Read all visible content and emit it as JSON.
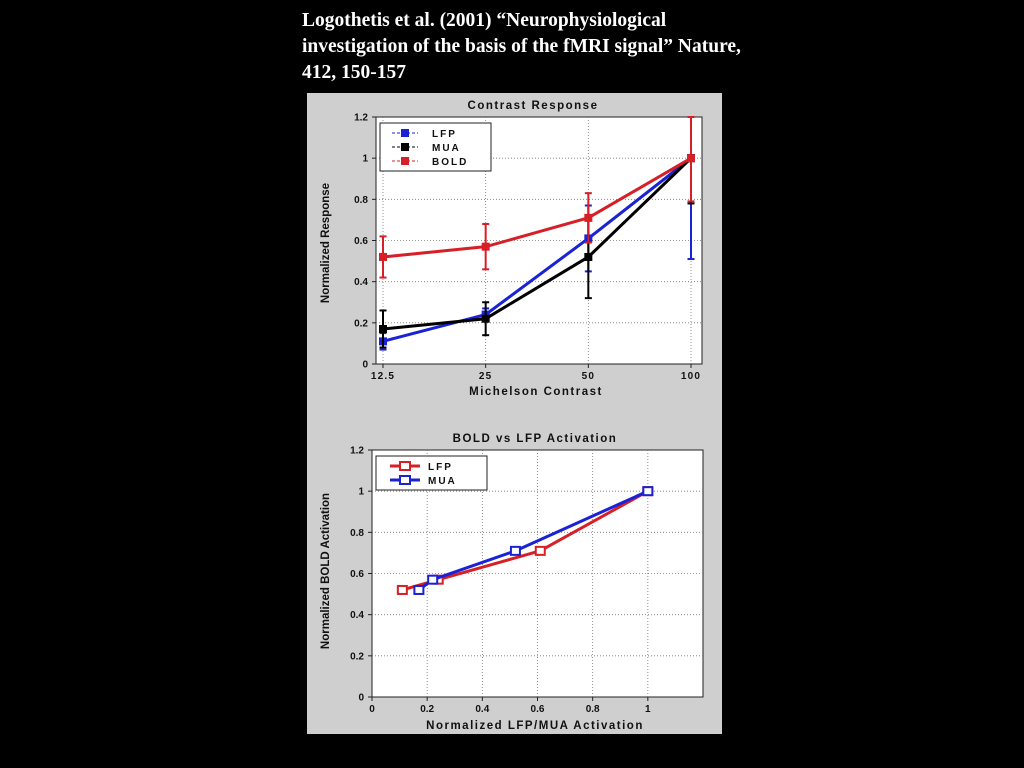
{
  "slide": {
    "citation": "Logothetis et al. (2001) “Neurophysiological investigation of the basis of the fMRI signal” Nature, 412, 150-157"
  },
  "colors": {
    "lfp": "#1a22d6",
    "mua": "#000000",
    "bold": "#d61f26",
    "panel_background": "#cfcfcf",
    "slide_background": "#000000"
  },
  "chart_data": [
    {
      "type": "line",
      "title": "Contrast Response",
      "xlabel": "Michelson Contrast",
      "ylabel": "Normalized Response",
      "x_scale": "log",
      "x": [
        12.5,
        25,
        50,
        100
      ],
      "x_tick_labels": [
        "12.5",
        "25",
        "50",
        "100"
      ],
      "ylim": [
        0,
        1.2
      ],
      "y_ticks": [
        0,
        0.2,
        0.4,
        0.6,
        0.8,
        1,
        1.2
      ],
      "y_tick_labels": [
        "0",
        "0.2",
        "0.4",
        "0.6",
        "0.8",
        "1",
        "1.2"
      ],
      "grid": true,
      "legend_position": "top-left",
      "series": [
        {
          "name": "LFP",
          "color": "#1a22d6",
          "marker": "square",
          "values": [
            0.11,
            0.24,
            0.61,
            1.0
          ],
          "error": [
            0.04,
            0.03,
            0.16,
            0.49
          ]
        },
        {
          "name": "MUA",
          "color": "#000000",
          "marker": "square",
          "values": [
            0.17,
            0.22,
            0.52,
            1.0
          ],
          "error": [
            0.09,
            0.08,
            0.2,
            0.22
          ]
        },
        {
          "name": "BOLD",
          "color": "#d61f26",
          "marker": "square",
          "values": [
            0.52,
            0.57,
            0.71,
            1.0
          ],
          "error": [
            0.1,
            0.11,
            0.12,
            0.21
          ]
        }
      ]
    },
    {
      "type": "line",
      "title": "BOLD vs LFP Activation",
      "xlabel": "Normalized LFP/MUA Activation",
      "ylabel": "Normalized BOLD Activation",
      "xlim": [
        0,
        1.2
      ],
      "x_ticks": [
        0,
        0.2,
        0.4,
        0.6,
        0.8,
        1
      ],
      "x_tick_labels": [
        "0",
        "0.2",
        "0.4",
        "0.6",
        "0.8",
        "1"
      ],
      "ylim": [
        0,
        1.2
      ],
      "y_ticks": [
        0,
        0.2,
        0.4,
        0.6,
        0.8,
        1,
        1.2
      ],
      "y_tick_labels": [
        "0",
        "0.2",
        "0.4",
        "0.6",
        "0.8",
        "1",
        "1.2"
      ],
      "grid": true,
      "legend_position": "top-left",
      "series": [
        {
          "name": "LFP",
          "color": "#d61f26",
          "marker": "open-square",
          "x": [
            0.11,
            0.24,
            0.61,
            1.0
          ],
          "y": [
            0.52,
            0.57,
            0.71,
            1.0
          ]
        },
        {
          "name": "MUA",
          "color": "#1a22d6",
          "marker": "open-square",
          "x": [
            0.17,
            0.22,
            0.52,
            1.0
          ],
          "y": [
            0.52,
            0.57,
            0.71,
            1.0
          ]
        }
      ]
    }
  ]
}
